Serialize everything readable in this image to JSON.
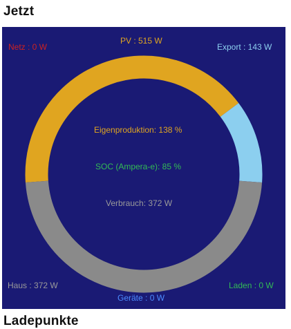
{
  "title_now": "Jetzt",
  "title_next": "Ladepunkte",
  "colors": {
    "panel_bg": "#1a1a74",
    "pv": "#e0a520",
    "export": "#8ccfef",
    "haus": "#8a8a8a",
    "netz": "#cc2222",
    "soc": "#33bb55",
    "geraete": "#4d8cff"
  },
  "gauge": {
    "pv_w": 515,
    "export_w": 143,
    "haus_w": 372,
    "laden_w": 0,
    "geraete_w": 0,
    "netz_w": 0
  },
  "labels": {
    "netz": "Netz : 0 W",
    "pv": "PV : 515 W",
    "export": "Export : 143 W",
    "eigenproduktion": "Eigenproduktion: 138 %",
    "soc": "SOC (Ampera-e): 85 %",
    "verbrauch": "Verbrauch: 372 W",
    "haus": "Haus : 372 W",
    "laden": "Laden : 0 W",
    "geraete": "Geräte : 0 W"
  }
}
